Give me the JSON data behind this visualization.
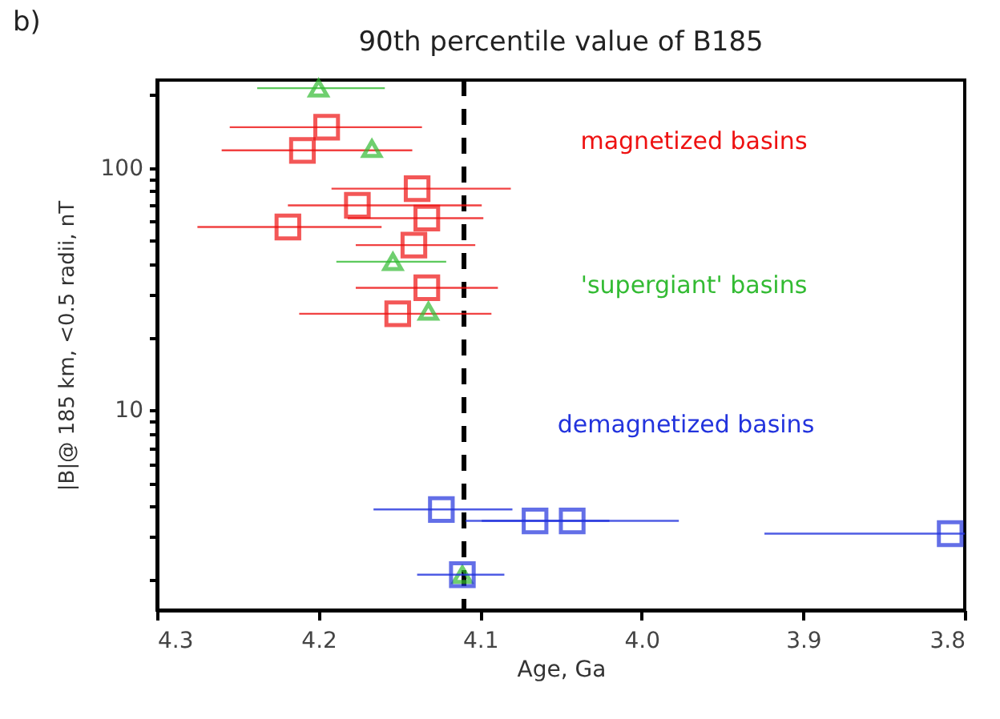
{
  "chart_data": {
    "type": "scatter",
    "title": "90th percentile value of B185",
    "xlabel": "Age, Ga",
    "ylabel": "|B|@ 185 km, <0.5 radii, nT",
    "annotations": [
      "b)"
    ],
    "log": "y",
    "xlim": [
      4.3,
      3.8
    ],
    "xticks": [
      4.3,
      4.2,
      4.1,
      {
        "value": 4,
        "label": "4.0"
      },
      3.9,
      3.8
    ],
    "ylim": [
      1.5,
      230
    ],
    "yticks": [
      {
        "value": 2,
        "label": null
      },
      {
        "value": 3,
        "label": null
      },
      {
        "value": 4,
        "label": null
      },
      {
        "value": 5,
        "label": null
      },
      {
        "value": 6,
        "label": null
      },
      {
        "value": 7,
        "label": null
      },
      {
        "value": 8,
        "label": null
      },
      {
        "value": 9,
        "label": null
      },
      10,
      {
        "value": 20,
        "label": null
      },
      {
        "value": 30,
        "label": null
      },
      {
        "value": 40,
        "label": null
      },
      {
        "value": 50,
        "label": null
      },
      {
        "value": 60,
        "label": null
      },
      {
        "value": 70,
        "label": null
      },
      {
        "value": 80,
        "label": null
      },
      {
        "value": 90,
        "label": null
      },
      100,
      {
        "value": 200,
        "label": null
      }
    ],
    "grid": false,
    "ref_lines": [
      {
        "axis": "x",
        "value": 4.11,
        "color": "#000000",
        "line_style": "dashed"
      }
    ],
    "series": [
      {
        "name": "magnetized basins",
        "color": "#ee1111",
        "marker": "square",
        "x": [
          4.195,
          4.21,
          4.139,
          4.176,
          4.219,
          4.133,
          4.141,
          4.133,
          4.151
        ],
        "values": [
          147,
          118,
          82,
          70,
          57,
          62,
          48,
          32,
          25
        ],
        "xerrors": [
          [
            4.255,
            4.136
          ],
          [
            4.26,
            4.142
          ],
          [
            4.192,
            4.081
          ],
          [
            4.219,
            4.099
          ],
          [
            4.275,
            4.161
          ],
          [
            4.182,
            4.098
          ],
          [
            4.177,
            4.103
          ],
          [
            4.177,
            4.089
          ],
          [
            4.212,
            4.093
          ]
        ]
      },
      {
        "name": "'supergiant' basins",
        "color": "#33bb33",
        "marker": "triangle",
        "x": [
          4.2,
          4.167,
          4.154,
          4.132,
          4.111
        ],
        "values": [
          213,
          120,
          41,
          25.6,
          2.1
        ],
        "xerrors": [
          [
            4.238,
            4.159
          ],
          null,
          [
            4.189,
            4.121
          ],
          null,
          null
        ]
      },
      {
        "name": "demagnetized basins",
        "color": "#2233dd",
        "marker": "square",
        "x": [
          4.124,
          4.111,
          4.066,
          4.043,
          3.809
        ],
        "values": [
          3.9,
          2.1,
          3.5,
          3.5,
          3.1
        ],
        "xerrors": [
          [
            4.166,
            4.08
          ],
          [
            4.139,
            4.085
          ],
          [
            4.109,
            4.02
          ],
          [
            4.099,
            3.977
          ],
          [
            3.924,
            3.8
          ]
        ]
      }
    ]
  }
}
